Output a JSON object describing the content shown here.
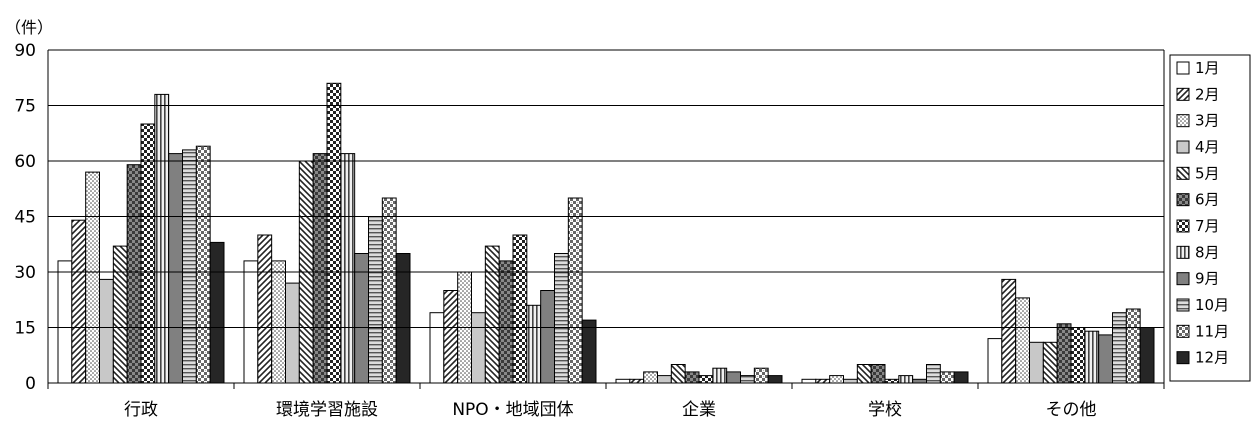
{
  "chart_data": {
    "type": "bar",
    "title": "",
    "xlabel": "",
    "ylabel": "（件）",
    "ylim": [
      0,
      90
    ],
    "yticks": [
      0,
      15,
      30,
      45,
      60,
      75,
      90
    ],
    "grid": true,
    "legend_position": "right",
    "categories": [
      "行政",
      "環境学習施設",
      "NPO・地域団体",
      "企業",
      "学校",
      "その他"
    ],
    "series": [
      {
        "name": "1月",
        "values": [
          33,
          33,
          19,
          1,
          1,
          12
        ]
      },
      {
        "name": "2月",
        "values": [
          44,
          40,
          25,
          1,
          1,
          28
        ]
      },
      {
        "name": "3月",
        "values": [
          57,
          33,
          30,
          3,
          2,
          23
        ]
      },
      {
        "name": "4月",
        "values": [
          28,
          27,
          19,
          2,
          1,
          11
        ]
      },
      {
        "name": "5月",
        "values": [
          37,
          60,
          37,
          5,
          5,
          11
        ]
      },
      {
        "name": "6月",
        "values": [
          59,
          62,
          33,
          3,
          5,
          16
        ]
      },
      {
        "name": "7月",
        "values": [
          70,
          81,
          40,
          2,
          1,
          15
        ]
      },
      {
        "name": "8月",
        "values": [
          78,
          62,
          21,
          4,
          2,
          14
        ]
      },
      {
        "name": "9月",
        "values": [
          62,
          35,
          25,
          3,
          1,
          13
        ]
      },
      {
        "name": "10月",
        "values": [
          63,
          45,
          35,
          2,
          5,
          19
        ]
      },
      {
        "name": "11月",
        "values": [
          64,
          50,
          50,
          4,
          3,
          20
        ]
      },
      {
        "name": "12月",
        "values": [
          38,
          35,
          17,
          2,
          3,
          15
        ]
      }
    ]
  }
}
